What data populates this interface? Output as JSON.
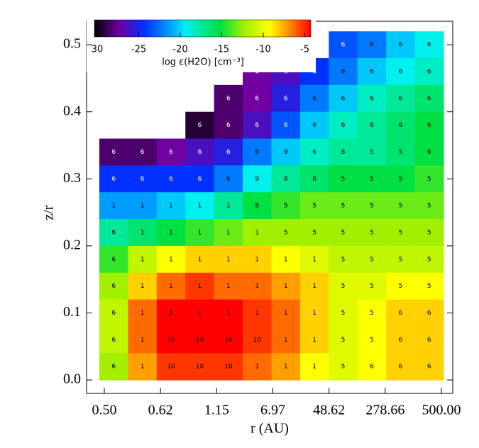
{
  "chart_data": {
    "type": "heatmap",
    "x_label": "r (AU)",
    "y_label": "z/r",
    "x_tick_labels": [
      "0.50",
      "0.62",
      "1.15",
      "6.97",
      "48.62",
      "278.66",
      "500.00"
    ],
    "ylim": [
      -0.02,
      0.535
    ],
    "yticks": [
      {
        "value": 0,
        "label": "0.0"
      },
      0.1,
      0.2,
      0.3,
      0.4,
      0.5
    ],
    "y": [
      0.5,
      0.46,
      0.42,
      0.38,
      0.34,
      0.3,
      0.26,
      0.22,
      0.18,
      0.14,
      0.1,
      0.06,
      0.02
    ],
    "values": [
      [
        null,
        null,
        null,
        null,
        null,
        null,
        null,
        null,
        -23,
        -22,
        -20,
        -19
      ],
      [
        null,
        null,
        null,
        null,
        null,
        -27,
        -26,
        -24,
        -22,
        -20,
        -19,
        -18
      ],
      [
        null,
        null,
        null,
        null,
        -28,
        -27,
        -25,
        -22,
        -20,
        -18,
        -17,
        -16
      ],
      [
        null,
        null,
        null,
        -29,
        -28,
        -26,
        -23,
        -20,
        -18,
        -17,
        -16,
        -15
      ],
      [
        -28,
        -28,
        -27,
        -26,
        -25,
        -22,
        -20,
        -18,
        -17,
        -17,
        -16,
        -15
      ],
      [
        -24,
        -24,
        -24,
        -24,
        -22,
        -19,
        -17,
        -16,
        -15,
        -15,
        -15,
        -14
      ],
      [
        -21,
        -21,
        -20,
        -19,
        -17,
        -15,
        -14,
        -13,
        -13,
        -13,
        -13,
        -13
      ],
      [
        -17,
        -16,
        -15,
        -14,
        -13,
        -12,
        -12,
        -12,
        -12,
        -12,
        -12,
        -12
      ],
      [
        -14,
        -11,
        -9,
        -8,
        -8,
        -8,
        -9,
        -10,
        -11,
        -11,
        -11,
        -11
      ],
      [
        -12,
        -8,
        -6,
        -5,
        -6,
        -6,
        -7,
        -8,
        -10,
        -10,
        -9,
        -9
      ],
      [
        -11,
        -6,
        -4,
        -4,
        -4,
        -5,
        -6,
        -8,
        -10,
        -9,
        -8,
        -8
      ],
      [
        -11,
        -6,
        -4,
        -4,
        -4,
        -5,
        -6,
        -8,
        -10,
        -9,
        -8,
        -8
      ],
      [
        -12,
        -7,
        -5,
        -5,
        -5,
        -6,
        -7,
        -9,
        -10,
        -9,
        -8,
        -8
      ]
    ],
    "cell_labels": [
      [
        null,
        null,
        null,
        null,
        null,
        null,
        null,
        null,
        "6",
        "6",
        "6",
        "6"
      ],
      [
        null,
        null,
        null,
        null,
        null,
        "6",
        "6",
        "6",
        "6",
        "6",
        "6",
        "6"
      ],
      [
        null,
        null,
        null,
        null,
        "6",
        "6",
        "6",
        "6",
        "6",
        "6",
        "6",
        "6"
      ],
      [
        null,
        null,
        null,
        "6",
        "6",
        "6",
        "6",
        "6",
        "6",
        "6",
        "6",
        "6"
      ],
      [
        "6",
        "6",
        "6",
        "6",
        "6",
        "6",
        "9",
        "6",
        "8",
        "5",
        "5",
        "6"
      ],
      [
        "6",
        "6",
        "6",
        "6",
        "6",
        "9",
        "8",
        "8",
        "5",
        "5",
        "5",
        "5"
      ],
      [
        "1",
        "1",
        "1",
        "1",
        "1",
        "8",
        "5",
        "5",
        "5",
        "5",
        "5",
        "5"
      ],
      [
        "6",
        "1",
        "1",
        "1",
        "1",
        "1",
        "5",
        "5",
        "5",
        "5",
        "5",
        "5"
      ],
      [
        "6",
        "1",
        "1",
        "1",
        "1",
        "1",
        "1",
        "1",
        "5",
        "5",
        "5",
        "5"
      ],
      [
        "6",
        "1",
        "1",
        "1",
        "1",
        "1",
        "1",
        "1",
        "5",
        "5",
        "5",
        "5"
      ],
      [
        "6",
        "1",
        "1",
        "1",
        "1",
        "1",
        "1",
        "1",
        "5",
        "5",
        "6",
        "6"
      ],
      [
        "6",
        "1",
        "10",
        "10",
        "10",
        "10",
        "1",
        "1",
        "5",
        "5",
        "6",
        "6"
      ],
      [
        "6",
        "1",
        "10",
        "10",
        "10",
        "1",
        "1",
        "1",
        "5",
        "6",
        "6",
        "6"
      ]
    ],
    "colorbar": {
      "label": "log ε(H2O) [cm⁻³]",
      "lim": [
        -30,
        -4
      ],
      "ticks": [
        {
          "value": -30,
          "label": "30"
        },
        -25,
        -20,
        -15,
        -10,
        -5
      ]
    }
  }
}
